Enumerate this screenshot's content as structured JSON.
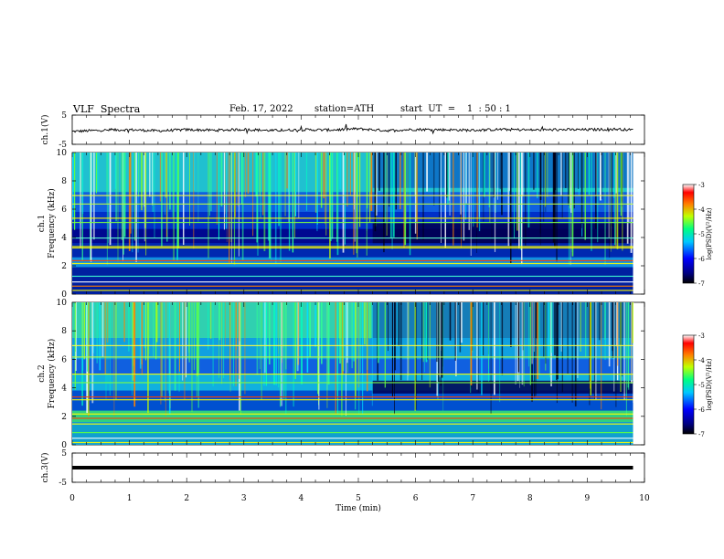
{
  "header": {
    "title": "VLF  Spectra",
    "date": "Feb. 17, 2022",
    "station": "station=ATH",
    "start": "start  UT  =    1  : 50 : 1"
  },
  "chart_data": [
    {
      "type": "line",
      "panel": "ch1-waveform",
      "ylabel": "ch.1(V)",
      "ylim": [
        -5,
        5
      ],
      "yticks": [
        5,
        -5
      ],
      "xlim": [
        0,
        10
      ],
      "series": [
        {
          "color": "#000000",
          "x": [
            0,
            0.5,
            1,
            1.5,
            2,
            2.5,
            3,
            3.5,
            4,
            4.5,
            5,
            5.5,
            6,
            6.5,
            7,
            7.5,
            8,
            8.5,
            9,
            9.5,
            9.8
          ],
          "y": [
            -0.6,
            -0.2,
            0,
            -0.4,
            0,
            -0.2,
            0.1,
            -0.3,
            0,
            -0.1,
            0.3,
            -0.3,
            0.1,
            0,
            -0.2,
            0.1,
            -0.1,
            0,
            0,
            0.2,
            -0.1
          ]
        }
      ]
    },
    {
      "type": "heatmap",
      "panel": "ch1-spectrogram",
      "ylabel": "ch.1\nFrequency  (kHz)",
      "ylim": [
        0,
        10
      ],
      "yticks": [
        0,
        2,
        4,
        6,
        8,
        10
      ],
      "xlim": [
        0,
        9.8
      ],
      "colorbar": {
        "label": "log(PSD)(V²/Hz)",
        "ticks": [
          -3,
          -4,
          -5,
          -6,
          -7
        ],
        "range": [
          -7,
          -3
        ]
      }
    },
    {
      "type": "heatmap",
      "panel": "ch2-spectrogram",
      "ylabel": "ch.2\nFrequency  (kHz)",
      "ylim": [
        0,
        10
      ],
      "yticks": [
        0,
        2,
        4,
        6,
        8,
        10
      ],
      "xlim": [
        0,
        9.8
      ],
      "colorbar": {
        "label": "log(PSD)(V²/Hz)",
        "ticks": [
          -3,
          -4,
          -5,
          -6,
          -7
        ],
        "range": [
          -7,
          -3
        ]
      }
    },
    {
      "type": "line",
      "panel": "ch3-waveform",
      "ylabel": "ch.3(V)",
      "ylim": [
        -5,
        5
      ],
      "yticks": [
        5,
        -5
      ],
      "xlim": [
        0,
        10
      ],
      "series": [
        {
          "color": "#000000",
          "x": [
            0,
            9.8
          ],
          "y": [
            0,
            0
          ]
        }
      ]
    }
  ],
  "xaxis": {
    "label": "Time  (min)",
    "range": [
      0,
      10
    ],
    "ticks": [
      "0",
      "1",
      "2",
      "3",
      "4",
      "5",
      "6",
      "7",
      "8",
      "9",
      "10"
    ]
  }
}
